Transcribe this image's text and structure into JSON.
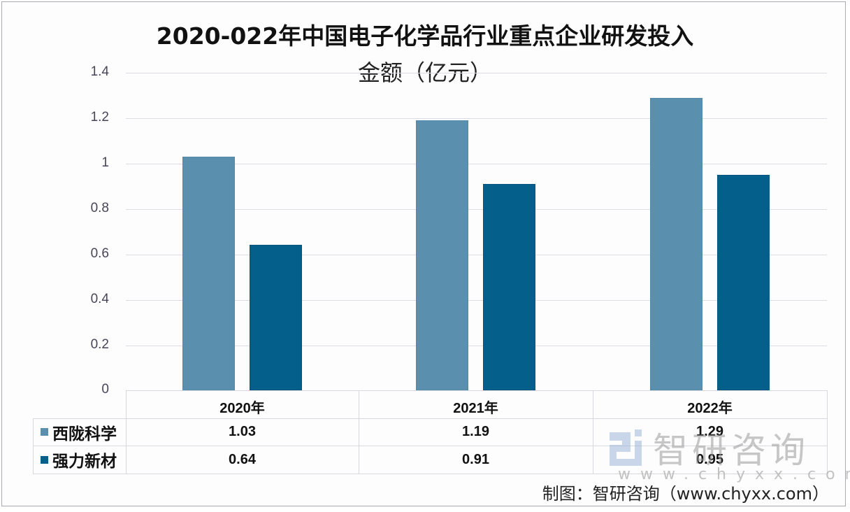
{
  "chart_data": {
    "type": "bar",
    "title": "2020-022年中国电子化学品行业重点企业研发投入金额（亿元）",
    "title_lines": [
      "2020-022年中国电子化学品行业重点企业研发投入",
      "金额（亿元）"
    ],
    "categories": [
      "2020年",
      "2021年",
      "2022年"
    ],
    "series": [
      {
        "name": "西陇科学",
        "color": "#5b8fae",
        "values": [
          1.03,
          1.19,
          1.29
        ]
      },
      {
        "name": "强力新材",
        "color": "#04608a",
        "values": [
          0.64,
          0.91,
          0.95
        ]
      }
    ],
    "xlabel": "",
    "ylabel": "",
    "ylim": [
      0,
      1.4
    ],
    "yticks": [
      "0",
      "0.2",
      "0.4",
      "0.6",
      "0.8",
      "1",
      "1.2",
      "1.4"
    ],
    "grid": true,
    "legend_position": "data-table-bottom",
    "data_table": {
      "header": [
        "2020年",
        "2021年",
        "2022年"
      ],
      "rows": [
        {
          "label": "西陇科学",
          "values": [
            "1.03",
            "1.19",
            "1.29"
          ]
        },
        {
          "label": "强力新材",
          "values": [
            "0.64",
            "0.91",
            "0.95"
          ]
        }
      ]
    }
  },
  "watermark": {
    "text": "智研咨询",
    "url": "www.chyxx.com"
  },
  "source": "制图：智研咨询（www.chyxx.com）"
}
